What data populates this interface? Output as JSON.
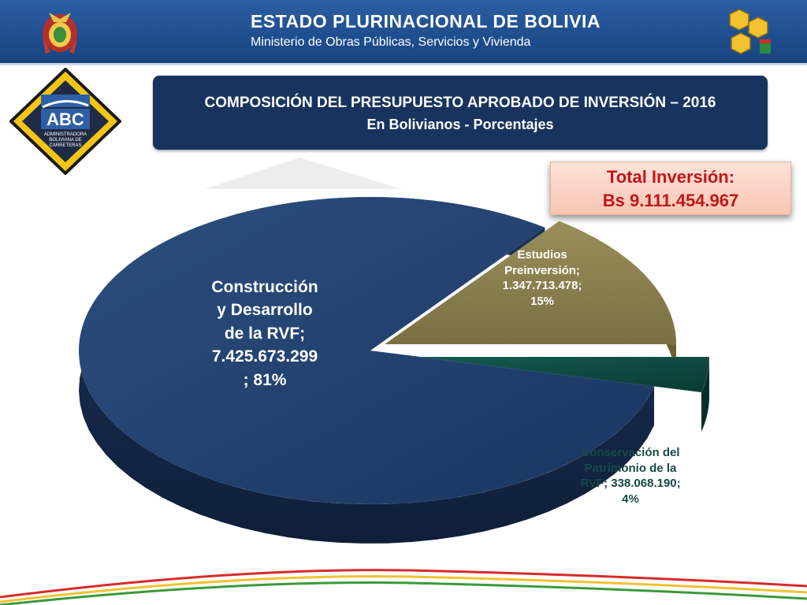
{
  "header": {
    "title": "ESTADO PLURINACIONAL DE BOLIVIA",
    "subtitle": "Ministerio de Obras Públicas, Servicios y Vivienda",
    "crest_icon": "bolivia-coat-of-arms",
    "ministry_logo_icon": "ministry-hexagon-logo"
  },
  "logo": {
    "text": "ABC",
    "subtext": [
      "ADMINISTRADORA",
      "BOLIVIANA DE",
      "CARRETERAS"
    ]
  },
  "title_box": {
    "line1": "COMPOSICIÓN DEL PRESUPUESTO APROBADO DE INVERSIÓN –  2016",
    "line2": "En Bolivianos - Porcentajes"
  },
  "total": {
    "label": "Total Inversión:",
    "value": "Bs 9.111.454.967"
  },
  "chart_data": {
    "type": "pie",
    "title": "COMPOSICIÓN DEL PRESUPUESTO APROBADO DE INVERSIÓN –  2016",
    "subtitle": "En Bolivianos - Porcentajes",
    "categories": [
      "Construcción y Desarrollo de la RVF",
      "Estudios Preinversión",
      "Conservación del Patrimonio de la RVF"
    ],
    "values": [
      7425673299,
      1347713478,
      338068190
    ],
    "percentages": [
      81,
      15,
      4
    ],
    "colors": [
      "#1f3c66",
      "#8a7f4d",
      "#0f4d45"
    ],
    "labels": {
      "construccion": [
        "Construcción",
        "y Desarrollo",
        "de la RVF;",
        "7.425.673.299",
        "; 81%"
      ],
      "estudios": [
        "Estudios",
        "Preinversión;",
        "1.347.713.478;",
        "15%"
      ],
      "conservacion": [
        "Conservación del",
        "Patrimonio de la",
        "RVF; 338.068.190;",
        "4%"
      ]
    }
  }
}
